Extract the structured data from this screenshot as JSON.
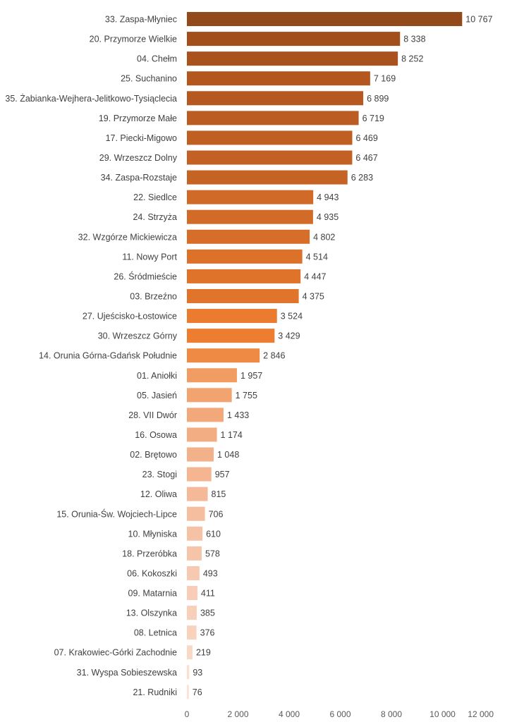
{
  "chart_data": {
    "type": "bar",
    "orientation": "horizontal",
    "title": "",
    "xlabel": "",
    "ylabel": "",
    "xlim": [
      0,
      12000
    ],
    "xticks": [
      0,
      2000,
      4000,
      6000,
      8000,
      10000,
      12000
    ],
    "xtick_labels": [
      "0",
      "2 000",
      "4 000",
      "6 000",
      "8 000",
      "10 000",
      "12 000"
    ],
    "grid": false,
    "legend": "none",
    "categories": [
      "33. Zaspa-Młyniec",
      "20. Przymorze Wielkie",
      "04. Chełm",
      "25. Suchanino",
      "35. Żabianka-Wejhera-Jelitkowo-Tysiąclecia",
      "19. Przymorze Małe",
      "17. Piecki-Migowo",
      "29. Wrzeszcz Dolny",
      "34. Zaspa-Rozstaje",
      "22. Siedlce",
      "24. Strzyża",
      "32. Wzgórze Mickiewicza",
      "11. Nowy Port",
      "26. Śródmieście",
      "03. Brzeźno",
      "27. Ujeścisko-Łostowice",
      "30. Wrzeszcz Górny",
      "14. Orunia Górna-Gdańsk Południe",
      "01. Aniołki",
      "05. Jasień",
      "28. VII Dwór",
      "16. Osowa",
      "02. Brętowo",
      "23. Stogi",
      "12. Oliwa",
      "15. Orunia-Św. Wojciech-Lipce",
      "10. Młyniska",
      "18. Przeróbka",
      "06. Kokoszki",
      "09. Matarnia",
      "13. Olszynka",
      "08. Letnica",
      "07. Krakowiec-Górki Zachodnie",
      "31. Wyspa Sobieszewska",
      "21. Rudniki"
    ],
    "values": [
      10767,
      8338,
      8252,
      7169,
      6899,
      6719,
      6469,
      6467,
      6283,
      4943,
      4935,
      4802,
      4514,
      4447,
      4375,
      3524,
      3429,
      2846,
      1957,
      1755,
      1433,
      1174,
      1048,
      957,
      815,
      706,
      610,
      578,
      493,
      411,
      385,
      376,
      219,
      93,
      76
    ],
    "value_labels": [
      "10 767",
      "8 338",
      "8 252",
      "7 169",
      "6 899",
      "6 719",
      "6 469",
      "6 467",
      "6 283",
      "4 943",
      "4 935",
      "4 802",
      "4 514",
      "4 447",
      "4 375",
      "3 524",
      "3 429",
      "2 846",
      "1 957",
      "1 755",
      "1 433",
      "1 174",
      "1 048",
      "957",
      "815",
      "706",
      "610",
      "578",
      "493",
      "411",
      "385",
      "376",
      "219",
      "93",
      "76"
    ],
    "bar_colors": [
      "#934a1a",
      "#a24f1c",
      "#a9521e",
      "#b3571f",
      "#b55920",
      "#bb5d22",
      "#bf5f22",
      "#c26123",
      "#c56325",
      "#d06a28",
      "#d26b28",
      "#d66e29",
      "#dc7129",
      "#df732a",
      "#e0742a",
      "#eb7c2f",
      "#ed7d31",
      "#ef8a45",
      "#f19c62",
      "#f2a370",
      "#f2a87a",
      "#f3ad83",
      "#f3b18a",
      "#f4b590",
      "#f5b999",
      "#f5be9f",
      "#f6c2a6",
      "#f6c5a9",
      "#f7c9b0",
      "#f8ccb6",
      "#f8d0ba",
      "#f9d2bd",
      "#fad8c6",
      "#fbdfcf",
      "#fce2d3"
    ]
  }
}
